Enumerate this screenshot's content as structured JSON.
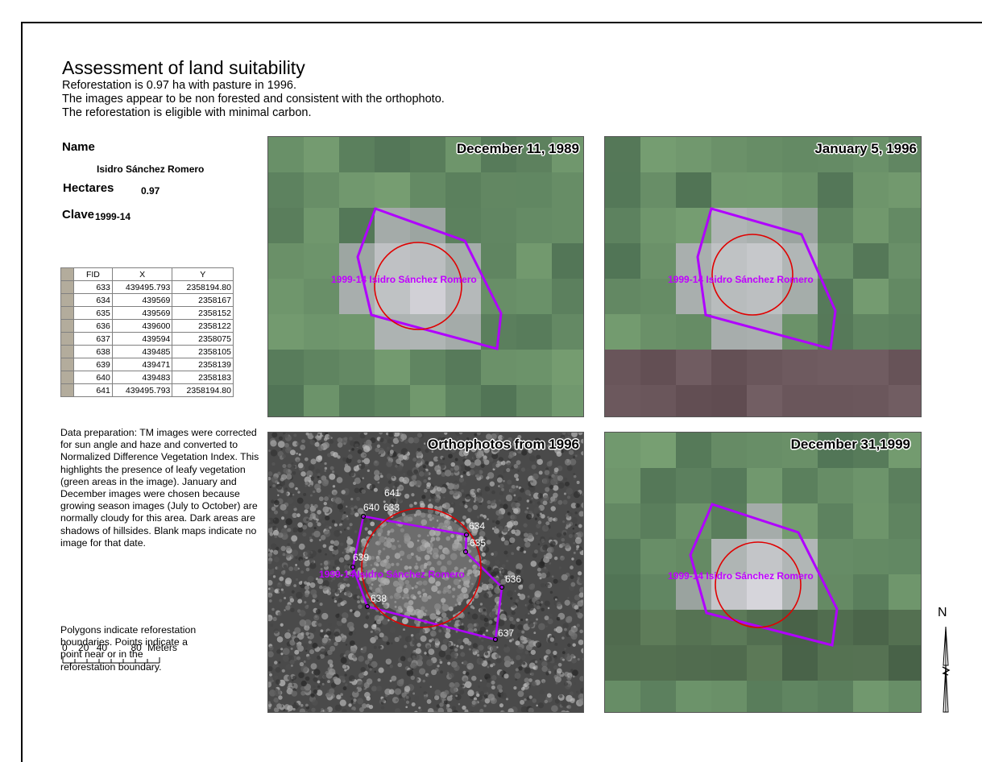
{
  "title": "Assessment of land suitability",
  "summary": [
    "Reforestation is 0.97 ha with pasture in 1996.",
    "The images appear to be non forested and consistent with the orthophoto.",
    "The reforestation is eligible with minimal carbon."
  ],
  "fields": {
    "name_label": "Name",
    "name_value": "Isidro Sánchez Romero",
    "hectares_label": "Hectares",
    "hectares_value": "0.97",
    "clave_label": "Clave",
    "clave_value": "1999-14"
  },
  "table": {
    "headers": [
      "FID",
      "X",
      "Y"
    ],
    "rows": [
      [
        "633",
        "439495.793",
        "2358194.80"
      ],
      [
        "634",
        "439569",
        "2358167"
      ],
      [
        "635",
        "439569",
        "2358152"
      ],
      [
        "636",
        "439600",
        "2358122"
      ],
      [
        "637",
        "439594",
        "2358075"
      ],
      [
        "638",
        "439485",
        "2358105"
      ],
      [
        "639",
        "439471",
        "2358139"
      ],
      [
        "640",
        "439483",
        "2358183"
      ],
      [
        "641",
        "439495.793",
        "2358194.80"
      ]
    ]
  },
  "notes": {
    "data_prep": "Data preparation: TM images were corrected for sun angle and haze and converted to Normalized Difference Vegetation Index. This highlights the  presence of leafy vegetation (green areas in the image). January and December images were chosen because growing season images (July to October) are normally cloudy for this area. Dark areas are shadows of hillsides. Blank maps indicate no image for that date.",
    "polygons": "Polygons indicate reforestation boundaries. Points indicate a point near or in the reforestation boundary."
  },
  "scale_bar": {
    "ticks": [
      "0",
      "20",
      "40",
      "80"
    ],
    "unit": "Meters"
  },
  "north_label": "N",
  "polygon_label": "1999-14 Isidro Sánchez Romero",
  "panels": [
    {
      "title": "December 11, 1989",
      "kind": "landsat"
    },
    {
      "title": "January 5, 1996",
      "kind": "landsat"
    },
    {
      "title": "Orthophotos from 1996",
      "kind": "ortho"
    },
    {
      "title": "December 31,1999",
      "kind": "landsat"
    }
  ],
  "point_labels": [
    "641",
    "640",
    "633",
    "634",
    "635",
    "636",
    "637",
    "638",
    "639"
  ],
  "colors": {
    "polygon": "#b000ff",
    "circle": "#e00000",
    "label": "#c000ff",
    "point_text": "#ffffff"
  }
}
